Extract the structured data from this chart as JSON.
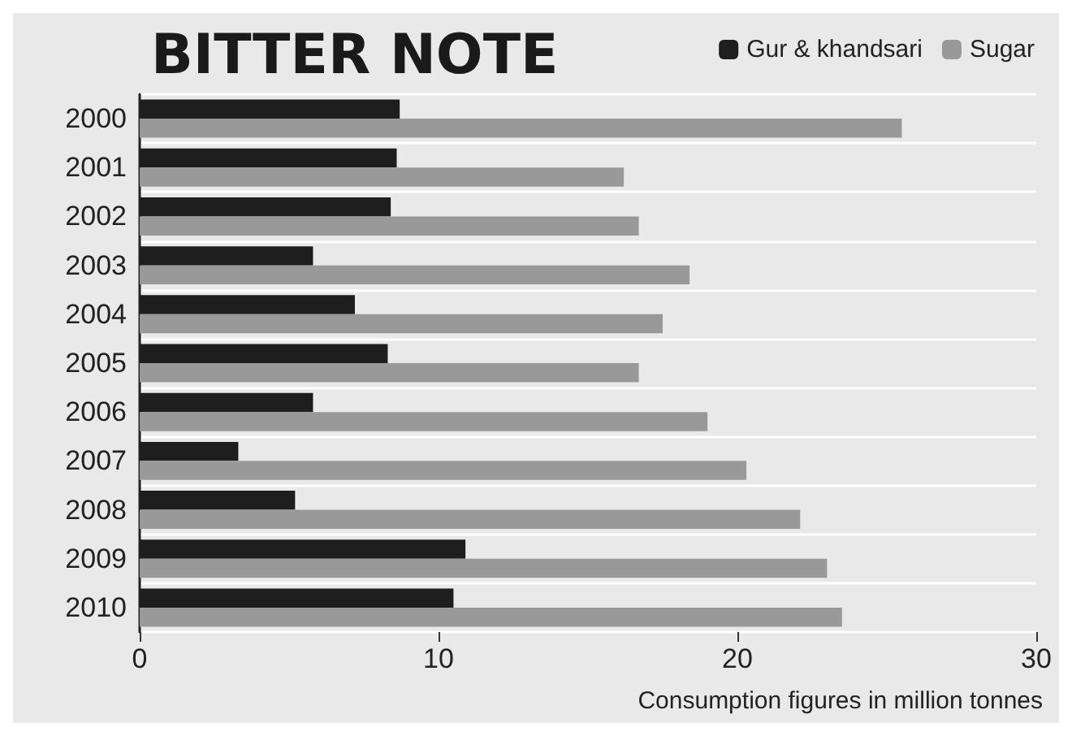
{
  "chart_data": {
    "type": "bar",
    "orientation": "horizontal",
    "title": "BITTER NOTE",
    "annotations": [
      "Consumption figures in million tonnes"
    ],
    "categories": [
      "2000",
      "2001",
      "2002",
      "2003",
      "2004",
      "2005",
      "2006",
      "2007",
      "2008",
      "2009",
      "2010"
    ],
    "series": [
      {
        "name": "Gur & khandsari",
        "color": "#1e1e1e",
        "values": [
          8.7,
          8.6,
          8.4,
          5.8,
          7.2,
          8.3,
          5.8,
          3.3,
          5.2,
          10.9,
          10.5
        ]
      },
      {
        "name": "Sugar",
        "color": "#999999",
        "values": [
          25.5,
          16.2,
          16.7,
          18.4,
          17.5,
          16.7,
          19.0,
          20.3,
          22.1,
          23.0,
          23.5
        ]
      }
    ],
    "xlim": [
      0,
      30
    ],
    "xticks": [
      0,
      10,
      20,
      30
    ],
    "grid": "y",
    "legend": "top right"
  }
}
